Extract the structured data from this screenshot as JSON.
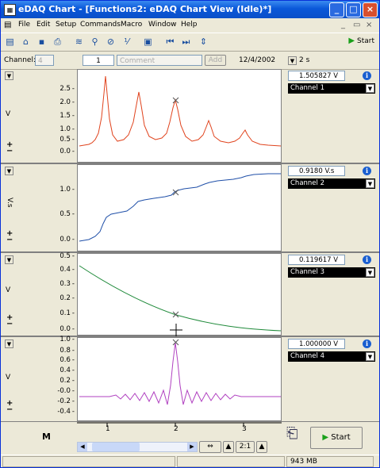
{
  "window": {
    "title": "eDAQ Chart - [Functions2: eDAQ Chart View (Idle)*]"
  },
  "menu": [
    "File",
    "Edit",
    "Setup",
    "Commands",
    "Macro",
    "Window",
    "Help"
  ],
  "toolbar": {
    "start_label": "Start"
  },
  "channel_bar": {
    "channel_label": "Channel:",
    "channel_value": "4",
    "page_value": "1",
    "comment_placeholder": "Comment",
    "add_label": "Add",
    "date": "12/4/2002",
    "time_scale": "2 s"
  },
  "channels": [
    {
      "value": "1.505827 V",
      "name": "Channel 1",
      "unit": "V",
      "yticks": [
        "2.5",
        "2.0",
        "1.5",
        "1.0",
        "0.5",
        "0.0"
      ],
      "color": "#e0431d"
    },
    {
      "value": "0.9180 V.s",
      "name": "Channel 2",
      "unit": "V.s",
      "yticks": [
        "1.0",
        "0.5",
        "0.0"
      ],
      "color": "#1f4fa8"
    },
    {
      "value": "0.119617 V",
      "name": "Channel 3",
      "unit": "V",
      "yticks": [
        "0.5",
        "0.4",
        "0.3",
        "0.2",
        "0.1",
        "0.0"
      ],
      "color": "#1f8a3a"
    },
    {
      "value": "1.000000 V",
      "name": "Channel 4",
      "unit": "V",
      "yticks": [
        "1.0",
        "0.8",
        "0.6",
        "0.4",
        "0.2",
        "-0.0",
        "-0.2",
        "-0.4"
      ],
      "color": "#b040c0"
    }
  ],
  "time_axis": {
    "labels": [
      "1",
      "2",
      "3"
    ]
  },
  "bottom": {
    "ratio": "2:1",
    "start_label": "Start"
  },
  "status": {
    "memory": "943 MB"
  },
  "colors": {
    "title_bar": "#0a58d9",
    "start_arrow": "#1aa01a",
    "info": "#1a5fd0"
  }
}
